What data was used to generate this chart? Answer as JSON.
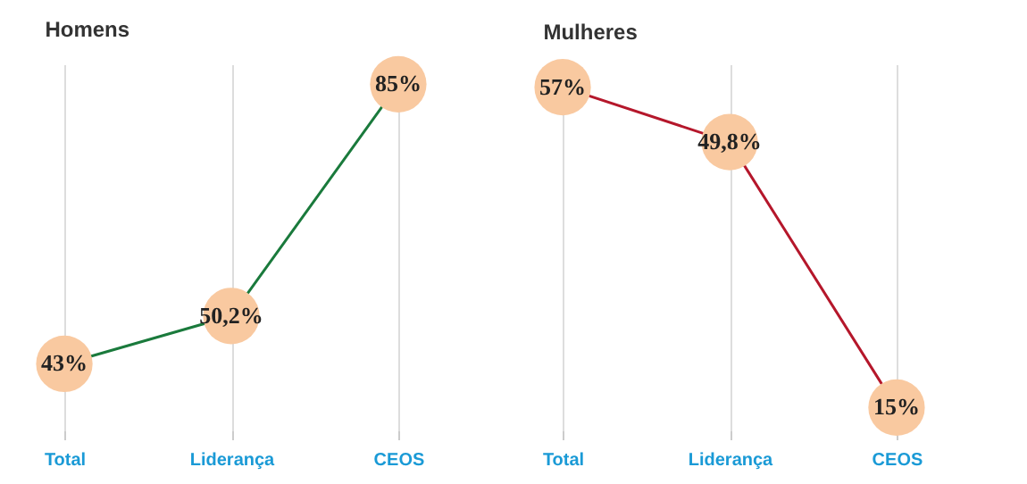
{
  "chart_data": [
    {
      "type": "line",
      "title": "Homens",
      "categories": [
        "Total",
        "Liderança",
        "CEOS"
      ],
      "ylim": [
        33,
        88
      ],
      "grid": "x",
      "marker": "circle",
      "line_style": "solid",
      "tick_labels": "x",
      "series": [
        {
          "color": "#1a7a3c",
          "values": [
            43,
            50.2,
            85
          ],
          "value_labels": [
            "43%",
            "50,2%",
            "85%"
          ]
        }
      ]
    },
    {
      "type": "line",
      "title": "Mulheres",
      "categories": [
        "Total",
        "Liderança",
        "CEOS"
      ],
      "ylim": [
        12,
        60
      ],
      "grid": "x",
      "marker": "circle",
      "line_style": "solid",
      "tick_labels": "x",
      "series": [
        {
          "color": "#b5172b",
          "values": [
            57,
            49.8,
            15
          ],
          "value_labels": [
            "57%",
            "49,8%",
            "15%"
          ]
        }
      ]
    }
  ]
}
